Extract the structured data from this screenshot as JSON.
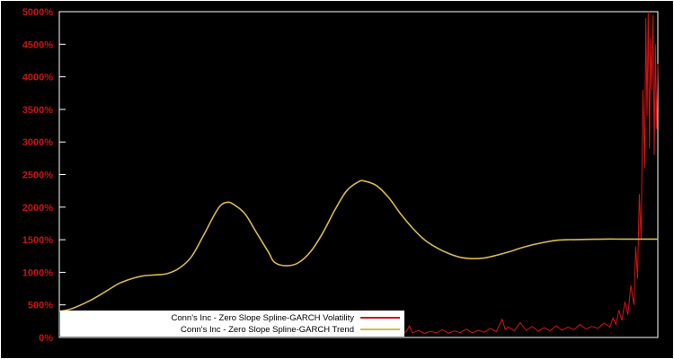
{
  "window": {
    "background": "#000000",
    "frame_color": "#ffffff"
  },
  "axis": {
    "color": "#ffffff",
    "tick_label_color": "#cc1111",
    "y_ticks": [
      {
        "value": 0,
        "label": "0%"
      },
      {
        "value": 500,
        "label": "500%"
      },
      {
        "value": 1000,
        "label": "1000%"
      },
      {
        "value": 1500,
        "label": "1500%"
      },
      {
        "value": 2000,
        "label": "2000%"
      },
      {
        "value": 2500,
        "label": "2500%"
      },
      {
        "value": 3000,
        "label": "3000%"
      },
      {
        "value": 3500,
        "label": "3500%"
      },
      {
        "value": 4000,
        "label": "4000%"
      },
      {
        "value": 4500,
        "label": "4500%"
      },
      {
        "value": 5000,
        "label": "5000%"
      }
    ]
  },
  "legend": {
    "background": "#ffffff",
    "text_color": "#000000"
  },
  "chart_data": {
    "type": "line",
    "title": "",
    "xlabel": "",
    "ylabel": "",
    "x_range": [
      0,
      1
    ],
    "ylim": [
      0,
      5000
    ],
    "y_tick_step": 500,
    "y_tick_format": "percent",
    "grid": false,
    "legend_position": "inside-bottom-left",
    "series": [
      {
        "name": "Conn's Inc - Zero Slope Spline-GARCH Volatility",
        "key": "volatility",
        "color": "#d41414",
        "width": 1,
        "smooth": false,
        "x": [
          0,
          0.01,
          0.02,
          0.03,
          0.04,
          0.05,
          0.06,
          0.07,
          0.08,
          0.09,
          0.1,
          0.11,
          0.12,
          0.13,
          0.14,
          0.15,
          0.16,
          0.17,
          0.18,
          0.19,
          0.2,
          0.21,
          0.22,
          0.23,
          0.24,
          0.25,
          0.26,
          0.27,
          0.28,
          0.29,
          0.3,
          0.31,
          0.32,
          0.33,
          0.34,
          0.35,
          0.36,
          0.37,
          0.38,
          0.39,
          0.4,
          0.41,
          0.42,
          0.43,
          0.44,
          0.45,
          0.46,
          0.47,
          0.48,
          0.49,
          0.5,
          0.51,
          0.52,
          0.53,
          0.54,
          0.55,
          0.56,
          0.57,
          0.58,
          0.585,
          0.59,
          0.6,
          0.61,
          0.62,
          0.63,
          0.64,
          0.65,
          0.66,
          0.67,
          0.68,
          0.69,
          0.7,
          0.71,
          0.72,
          0.73,
          0.74,
          0.745,
          0.75,
          0.76,
          0.77,
          0.78,
          0.79,
          0.8,
          0.81,
          0.82,
          0.83,
          0.84,
          0.85,
          0.86,
          0.87,
          0.88,
          0.89,
          0.9,
          0.91,
          0.92,
          0.925,
          0.93,
          0.935,
          0.94,
          0.945,
          0.95,
          0.955,
          0.96,
          0.963,
          0.966,
          0.969,
          0.972,
          0.975,
          0.978,
          0.98,
          0.982,
          0.984,
          0.986,
          0.988,
          0.99,
          0.992,
          0.994,
          0.996,
          0.998,
          1.0
        ],
        "y": [
          30,
          45,
          25,
          40,
          35,
          50,
          30,
          45,
          28,
          38,
          32,
          48,
          30,
          42,
          35,
          35,
          45,
          28,
          40,
          33,
          50,
          30,
          44,
          36,
          52,
          30,
          46,
          34,
          55,
          32,
          48,
          30,
          60,
          35,
          50,
          30,
          55,
          38,
          48,
          30,
          58,
          35,
          50,
          32,
          60,
          38,
          52,
          30,
          65,
          40,
          55,
          35,
          70,
          45,
          60,
          40,
          80,
          55,
          90,
          180,
          70,
          110,
          60,
          95,
          70,
          120,
          65,
          100,
          75,
          130,
          70,
          110,
          80,
          140,
          90,
          280,
          120,
          160,
          100,
          230,
          110,
          170,
          95,
          150,
          100,
          180,
          110,
          160,
          120,
          200,
          130,
          170,
          140,
          220,
          160,
          300,
          200,
          420,
          260,
          550,
          350,
          800,
          500,
          1400,
          900,
          2200,
          1500,
          3800,
          2600,
          4900,
          3400,
          5000,
          2900,
          4600,
          3800,
          4950,
          2800,
          4500,
          3200,
          4200
        ]
      },
      {
        "name": "Conn's Inc - Zero Slope Spline-GARCH Trend",
        "key": "trend",
        "color": "#d8b94a",
        "width": 1.6,
        "smooth": true,
        "x": [
          0,
          0.02,
          0.05,
          0.08,
          0.1,
          0.12,
          0.14,
          0.16,
          0.18,
          0.2,
          0.22,
          0.24,
          0.26,
          0.27,
          0.28,
          0.29,
          0.31,
          0.33,
          0.35,
          0.36,
          0.38,
          0.4,
          0.42,
          0.44,
          0.46,
          0.48,
          0.5,
          0.51,
          0.53,
          0.55,
          0.57,
          0.59,
          0.61,
          0.63,
          0.65,
          0.67,
          0.69,
          0.71,
          0.73,
          0.75,
          0.77,
          0.79,
          0.81,
          0.83,
          0.85,
          0.88,
          0.91,
          0.94,
          0.97,
          1.0
        ],
        "y": [
          400,
          440,
          560,
          720,
          830,
          900,
          945,
          960,
          980,
          1060,
          1230,
          1550,
          1900,
          2030,
          2075,
          2050,
          1900,
          1600,
          1300,
          1150,
          1100,
          1150,
          1320,
          1600,
          1950,
          2250,
          2390,
          2400,
          2330,
          2150,
          1900,
          1680,
          1500,
          1380,
          1290,
          1230,
          1210,
          1220,
          1260,
          1310,
          1370,
          1420,
          1460,
          1490,
          1500,
          1505,
          1510,
          1510,
          1510,
          1510
        ]
      }
    ]
  }
}
